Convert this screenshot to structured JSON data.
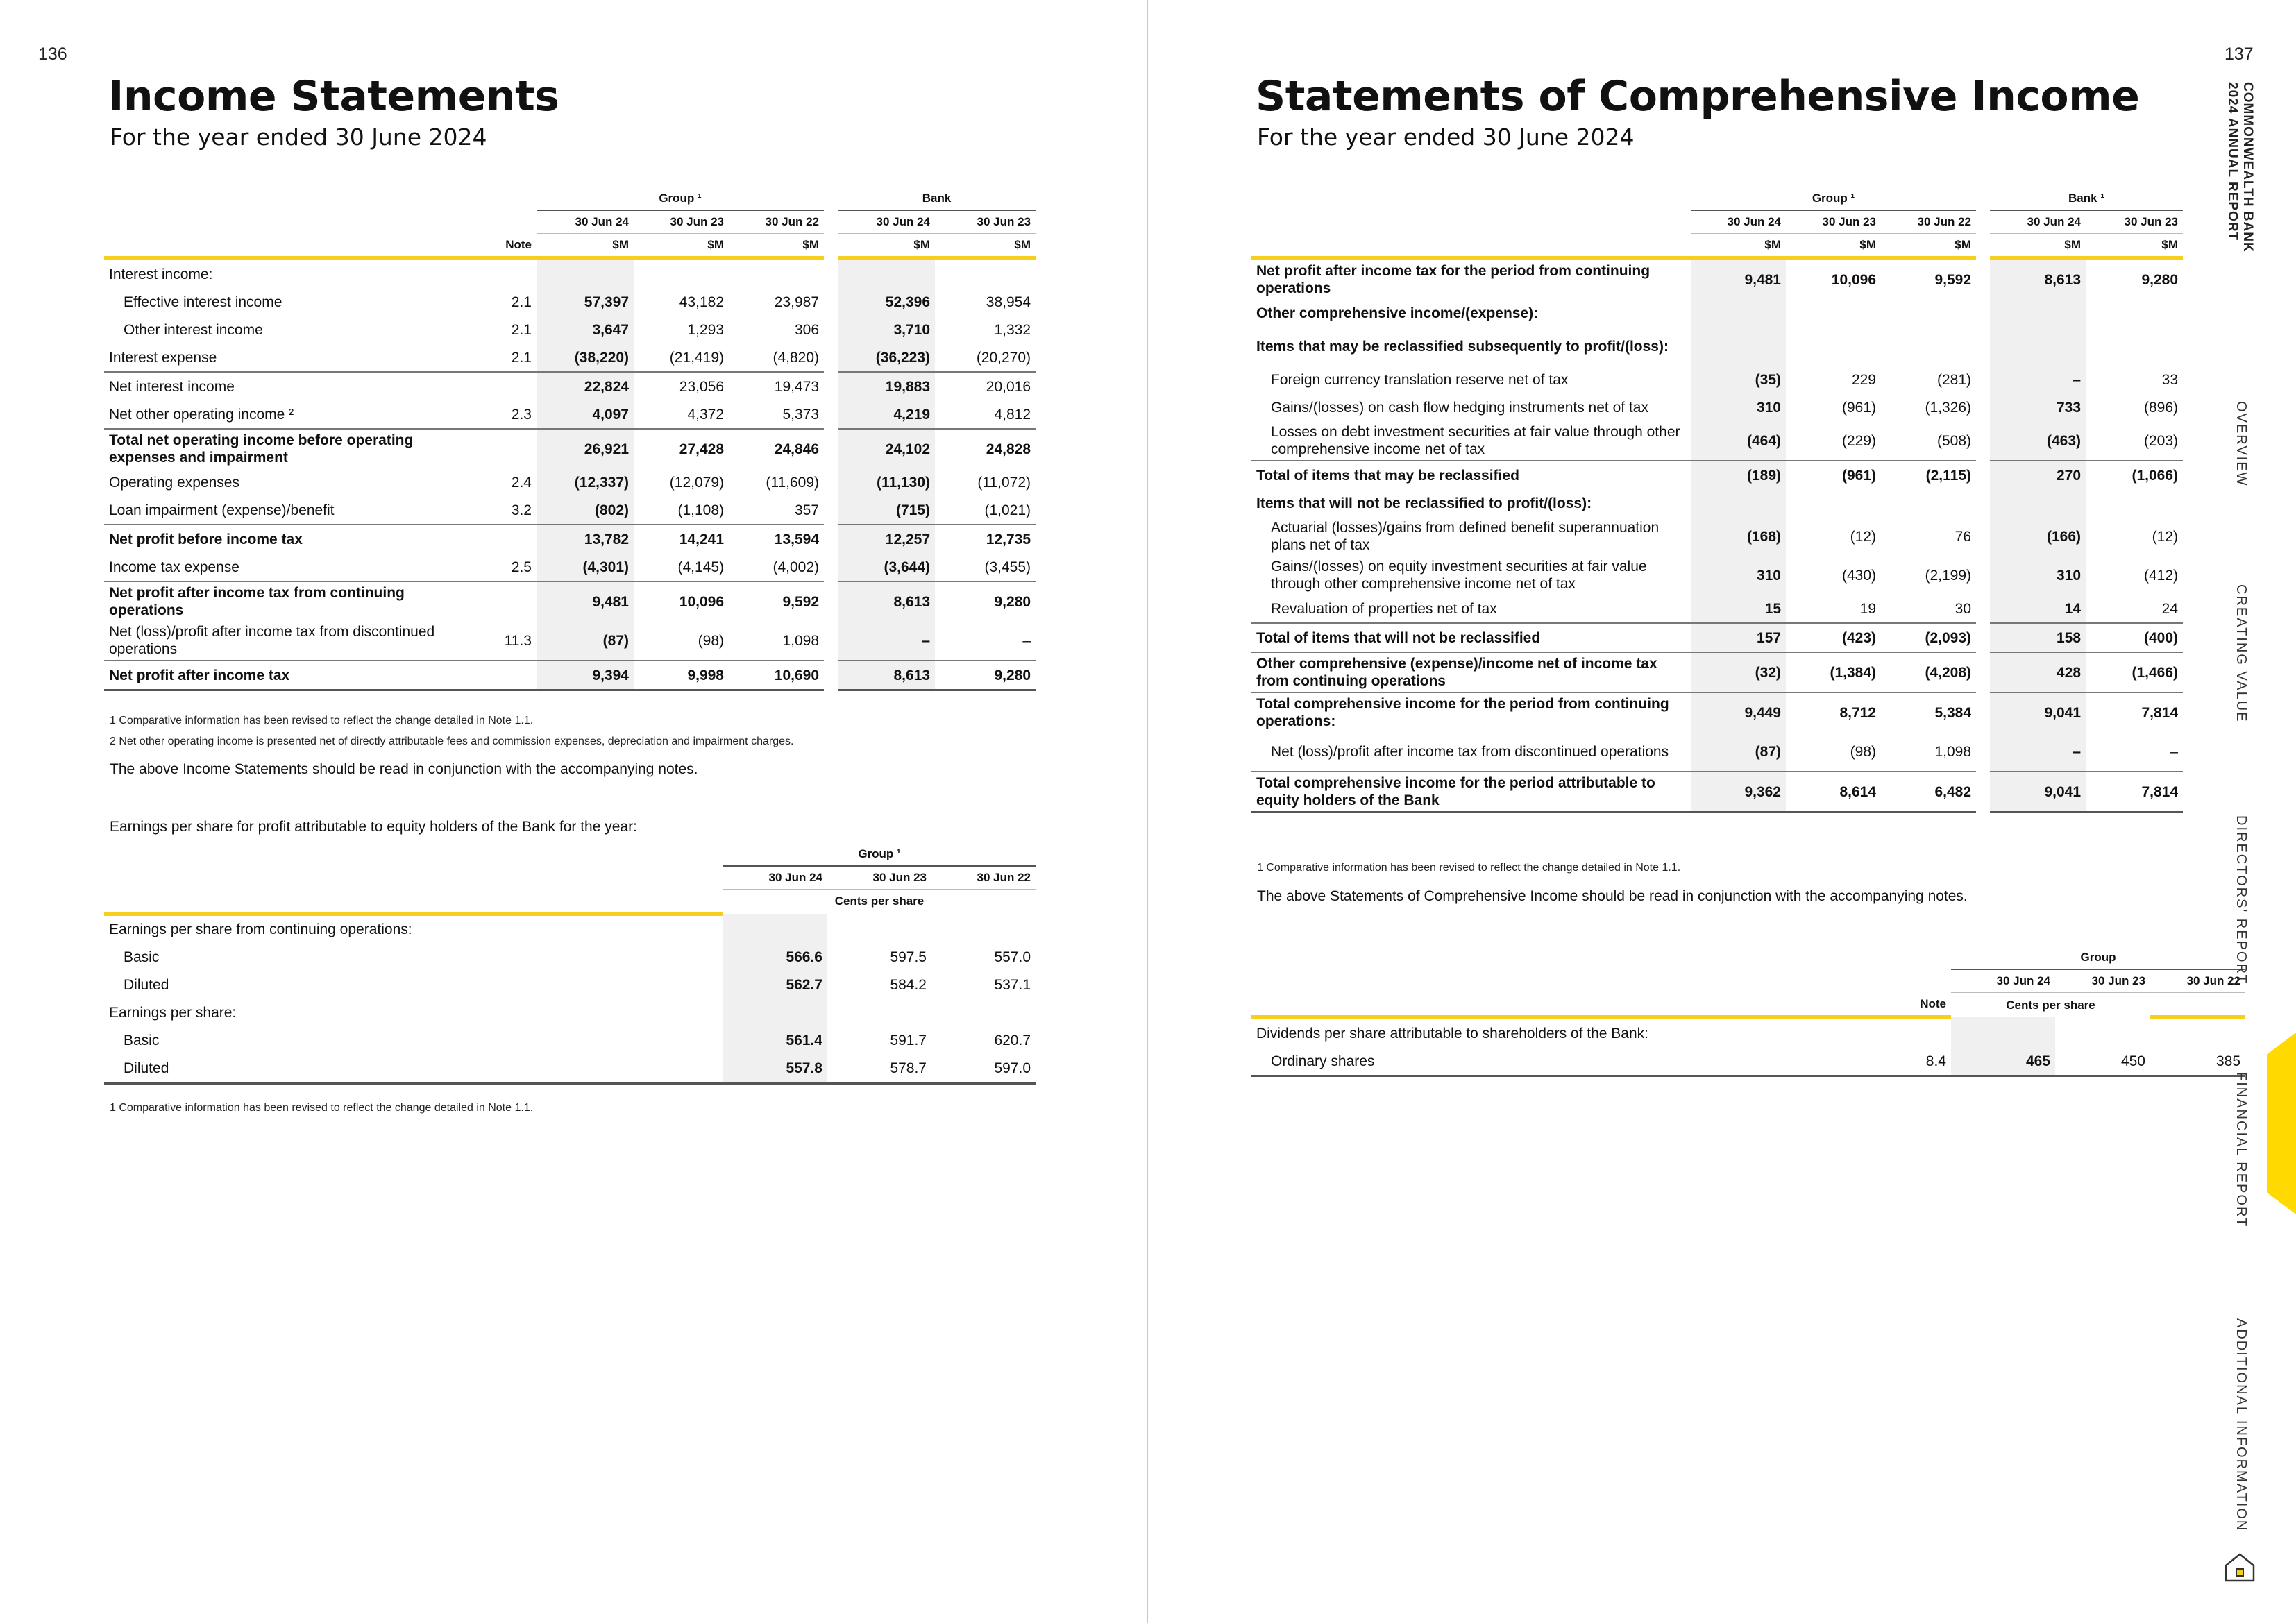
{
  "page_left": "136",
  "page_right": "137",
  "left": {
    "title": "Income Statements",
    "subtitle": "For the year ended 30 June 2024",
    "table": {
      "group_label": "Group ¹",
      "bank_label": "Bank",
      "note_label": "Note",
      "dates": [
        "30 Jun 24",
        "30 Jun 23",
        "30 Jun 22",
        "30 Jun 24",
        "30 Jun 23"
      ],
      "units": [
        "$M",
        "$M",
        "$M",
        "$M",
        "$M"
      ],
      "rows": [
        {
          "label": "Interest income:",
          "note": "",
          "v": [
            "",
            "",
            "",
            "",
            ""
          ]
        },
        {
          "label": "Effective interest income",
          "note": "2.1",
          "v": [
            "57,397",
            "43,182",
            "23,987",
            "52,396",
            "38,954"
          ]
        },
        {
          "label": "Other interest income",
          "note": "2.1",
          "v": [
            "3,647",
            "1,293",
            "306",
            "3,710",
            "1,332"
          ]
        },
        {
          "label": "Interest expense",
          "note": "2.1",
          "v": [
            "(38,220)",
            "(21,419)",
            "(4,820)",
            "(36,223)",
            "(20,270)"
          ]
        },
        {
          "label": "Net interest income",
          "note": "",
          "v": [
            "22,824",
            "23,056",
            "19,473",
            "19,883",
            "20,016"
          ]
        },
        {
          "label": "Net other operating income ²",
          "note": "2.3",
          "v": [
            "4,097",
            "4,372",
            "5,373",
            "4,219",
            "4,812"
          ]
        },
        {
          "label": "Total net operating income before operating expenses and impairment",
          "note": "",
          "v": [
            "26,921",
            "27,428",
            "24,846",
            "24,102",
            "24,828"
          ]
        },
        {
          "label": "Operating expenses",
          "note": "2.4",
          "v": [
            "(12,337)",
            "(12,079)",
            "(11,609)",
            "(11,130)",
            "(11,072)"
          ]
        },
        {
          "label": "Loan impairment (expense)/benefit",
          "note": "3.2",
          "v": [
            "(802)",
            "(1,108)",
            "357",
            "(715)",
            "(1,021)"
          ]
        },
        {
          "label": "Net profit before income tax",
          "note": "",
          "v": [
            "13,782",
            "14,241",
            "13,594",
            "12,257",
            "12,735"
          ]
        },
        {
          "label": "Income tax expense",
          "note": "2.5",
          "v": [
            "(4,301)",
            "(4,145)",
            "(4,002)",
            "(3,644)",
            "(3,455)"
          ]
        },
        {
          "label": "Net profit after income tax from continuing operations",
          "note": "",
          "v": [
            "9,481",
            "10,096",
            "9,592",
            "8,613",
            "9,280"
          ]
        },
        {
          "label": "Net (loss)/profit after income tax from discontinued operations",
          "note": "11.3",
          "v": [
            "(87)",
            "(98)",
            "1,098",
            "–",
            "–"
          ]
        },
        {
          "label": "Net profit after income tax",
          "note": "",
          "v": [
            "9,394",
            "9,998",
            "10,690",
            "8,613",
            "9,280"
          ]
        }
      ]
    },
    "footnotes": [
      "1   Comparative information has been revised to reflect the change detailed in Note 1.1.",
      "2   Net other operating income is presented net of directly attributable fees and commission expenses, depreciation and impairment charges."
    ],
    "read_note": "The above Income Statements should be read in conjunction with the accompanying notes.",
    "eps_intro": "Earnings per share for profit attributable to equity holders of the Bank for the year:",
    "eps": {
      "group_label": "Group ¹",
      "dates": [
        "30 Jun 24",
        "30 Jun 23",
        "30 Jun 22"
      ],
      "units": "Cents per share",
      "rows": [
        {
          "label": "Earnings per share from continuing operations:",
          "v": [
            "",
            "",
            ""
          ]
        },
        {
          "label": "Basic",
          "v": [
            "566.6",
            "597.5",
            "557.0"
          ]
        },
        {
          "label": "Diluted",
          "v": [
            "562.7",
            "584.2",
            "537.1"
          ]
        },
        {
          "label": "Earnings per share:",
          "v": [
            "",
            "",
            ""
          ]
        },
        {
          "label": "Basic",
          "v": [
            "561.4",
            "591.7",
            "620.7"
          ]
        },
        {
          "label": "Diluted",
          "v": [
            "557.8",
            "578.7",
            "597.0"
          ]
        }
      ]
    },
    "eps_footnote": "1   Comparative information has been revised to reflect the change detailed in Note 1.1."
  },
  "right": {
    "title": "Statements of Comprehensive Income",
    "subtitle": "For the year ended 30 June 2024",
    "table": {
      "group_label": "Group ¹",
      "bank_label": "Bank ¹",
      "dates": [
        "30 Jun 24",
        "30 Jun 23",
        "30 Jun 22",
        "30 Jun 24",
        "30 Jun 23"
      ],
      "units": [
        "$M",
        "$M",
        "$M",
        "$M",
        "$M"
      ],
      "rows": [
        {
          "label": "Net profit after income tax for the period from continuing operations",
          "v": [
            "9,481",
            "10,096",
            "9,592",
            "8,613",
            "9,280"
          ]
        },
        {
          "label": "Other comprehensive income/(expense):",
          "v": [
            "",
            "",
            "",
            "",
            ""
          ]
        },
        {
          "label": "Items that may be reclassified subsequently to profit/(loss):",
          "v": [
            "",
            "",
            "",
            "",
            ""
          ]
        },
        {
          "label": "Foreign currency translation reserve net of tax",
          "v": [
            "(35)",
            "229",
            "(281)",
            "–",
            "33"
          ]
        },
        {
          "label": "Gains/(losses) on cash flow hedging instruments net of tax",
          "v": [
            "310",
            "(961)",
            "(1,326)",
            "733",
            "(896)"
          ]
        },
        {
          "label": "Losses on debt investment securities at fair value through other comprehensive income net of tax",
          "v": [
            "(464)",
            "(229)",
            "(508)",
            "(463)",
            "(203)"
          ]
        },
        {
          "label": "Total of items that may be reclassified",
          "v": [
            "(189)",
            "(961)",
            "(2,115)",
            "270",
            "(1,066)"
          ]
        },
        {
          "label": "Items that will not be reclassified to profit/(loss):",
          "v": [
            "",
            "",
            "",
            "",
            ""
          ]
        },
        {
          "label": "Actuarial (losses)/gains from defined benefit superannuation plans net of tax",
          "v": [
            "(168)",
            "(12)",
            "76",
            "(166)",
            "(12)"
          ]
        },
        {
          "label": "Gains/(losses) on equity investment securities at fair value through other comprehensive income net of tax",
          "v": [
            "310",
            "(430)",
            "(2,199)",
            "310",
            "(412)"
          ]
        },
        {
          "label": "Revaluation of properties net of tax",
          "v": [
            "15",
            "19",
            "30",
            "14",
            "24"
          ]
        },
        {
          "label": "Total of items that will not be reclassified",
          "v": [
            "157",
            "(423)",
            "(2,093)",
            "158",
            "(400)"
          ]
        },
        {
          "label": "Other comprehensive (expense)/income net of income tax from continuing operations",
          "v": [
            "(32)",
            "(1,384)",
            "(4,208)",
            "428",
            "(1,466)"
          ]
        },
        {
          "label": "Total comprehensive income for the period from continuing operations:",
          "v": [
            "9,449",
            "8,712",
            "5,384",
            "9,041",
            "7,814"
          ]
        },
        {
          "label": "Net (loss)/profit after income tax from discontinued operations",
          "v": [
            "(87)",
            "(98)",
            "1,098",
            "–",
            "–"
          ]
        },
        {
          "label": "Total comprehensive income for the period attributable to equity holders of the Bank",
          "v": [
            "9,362",
            "8,614",
            "6,482",
            "9,041",
            "7,814"
          ]
        }
      ]
    },
    "footnote": "1   Comparative information has been revised to reflect the change detailed in Note 1.1.",
    "read_note": "The above Statements of Comprehensive Income should be read in conjunction with the accompanying notes.",
    "div": {
      "group_label": "Group",
      "note_label": "Note",
      "dates": [
        "30 Jun 24",
        "30 Jun 23",
        "30 Jun 22"
      ],
      "units": "Cents per share",
      "rows": [
        {
          "label": "Dividends per share attributable to shareholders of the Bank:",
          "note": "",
          "v": [
            "",
            "",
            ""
          ]
        },
        {
          "label": "Ordinary shares",
          "note": "8.4",
          "v": [
            "465",
            "450",
            "385"
          ]
        }
      ]
    }
  },
  "brand": {
    "line1": "COMMONWEALTH BANK",
    "line2": "2024 ANNUAL REPORT"
  },
  "side_nav": [
    "OVERVIEW",
    "CREATING VALUE",
    "DIRECTORS' REPORT",
    "FINANCIAL REPORT",
    "ADDITIONAL INFORMATION"
  ],
  "accent": "#f5cf1b",
  "home_icon": "home-icon"
}
